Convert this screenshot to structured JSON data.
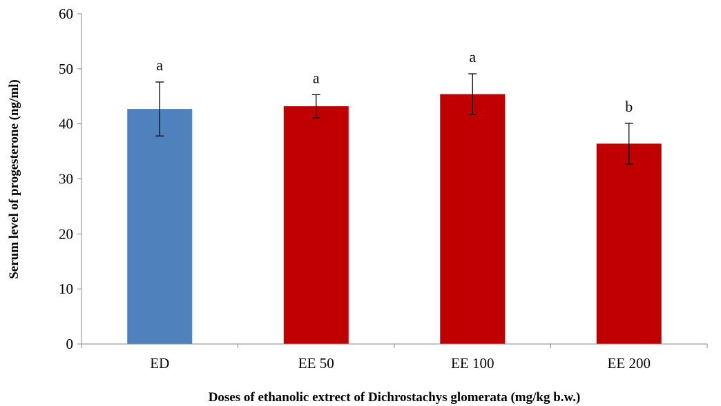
{
  "chart_data": {
    "type": "bar",
    "categories": [
      "ED",
      "EE 50",
      "EE 100",
      "EE 200"
    ],
    "values": [
      42.7,
      43.2,
      45.4,
      36.4
    ],
    "errors": [
      4.9,
      2.1,
      3.7,
      3.7
    ],
    "significance_labels": [
      "a",
      "a",
      "a",
      "b"
    ],
    "bar_colors": [
      "#4f81bd",
      "#c00000",
      "#c00000",
      "#c00000"
    ],
    "title": "",
    "xlabel": "Doses of ethanolic extrect of  Dichrostachys glomerata (mg/kg b.w.)",
    "ylabel": "Serum level of progesterone (ng/ml)",
    "ylim": [
      0,
      60
    ],
    "yticks": [
      0,
      10,
      20,
      30,
      40,
      50,
      60
    ],
    "grid": false,
    "legend": "none"
  }
}
